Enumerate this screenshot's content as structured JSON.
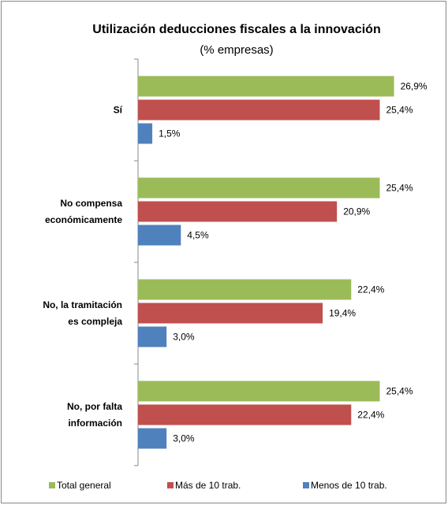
{
  "chart_data": {
    "type": "bar",
    "orientation": "horizontal",
    "title": "Utilización deducciones fiscales a la innovación",
    "subtitle": "(% empresas)",
    "categories": [
      "Sí",
      "No compensa\neconómicamente",
      "No, la tramitación\nes compleja",
      "No, por falta\ninformación"
    ],
    "series": [
      {
        "name": "Total general",
        "color": "#9bbb59",
        "values": [
          26.9,
          25.4,
          22.4,
          25.4
        ],
        "value_labels": [
          "26,9%",
          "25,4%",
          "22,4%",
          "25,4%"
        ]
      },
      {
        "name": "Más de 10 trab.",
        "color": "#c0504d",
        "values": [
          25.4,
          20.9,
          19.4,
          22.4
        ],
        "value_labels": [
          "25,4%",
          "20,9%",
          "19,4%",
          "22,4%"
        ]
      },
      {
        "name": "Menos de 10 trab.",
        "color": "#4f81bd",
        "values": [
          1.5,
          4.5,
          3.0,
          3.0
        ],
        "value_labels": [
          "1,5%",
          "4,5%",
          "3,0%",
          "3,0%"
        ]
      }
    ],
    "xlim": [
      0,
      30
    ],
    "legend": "bottom"
  }
}
